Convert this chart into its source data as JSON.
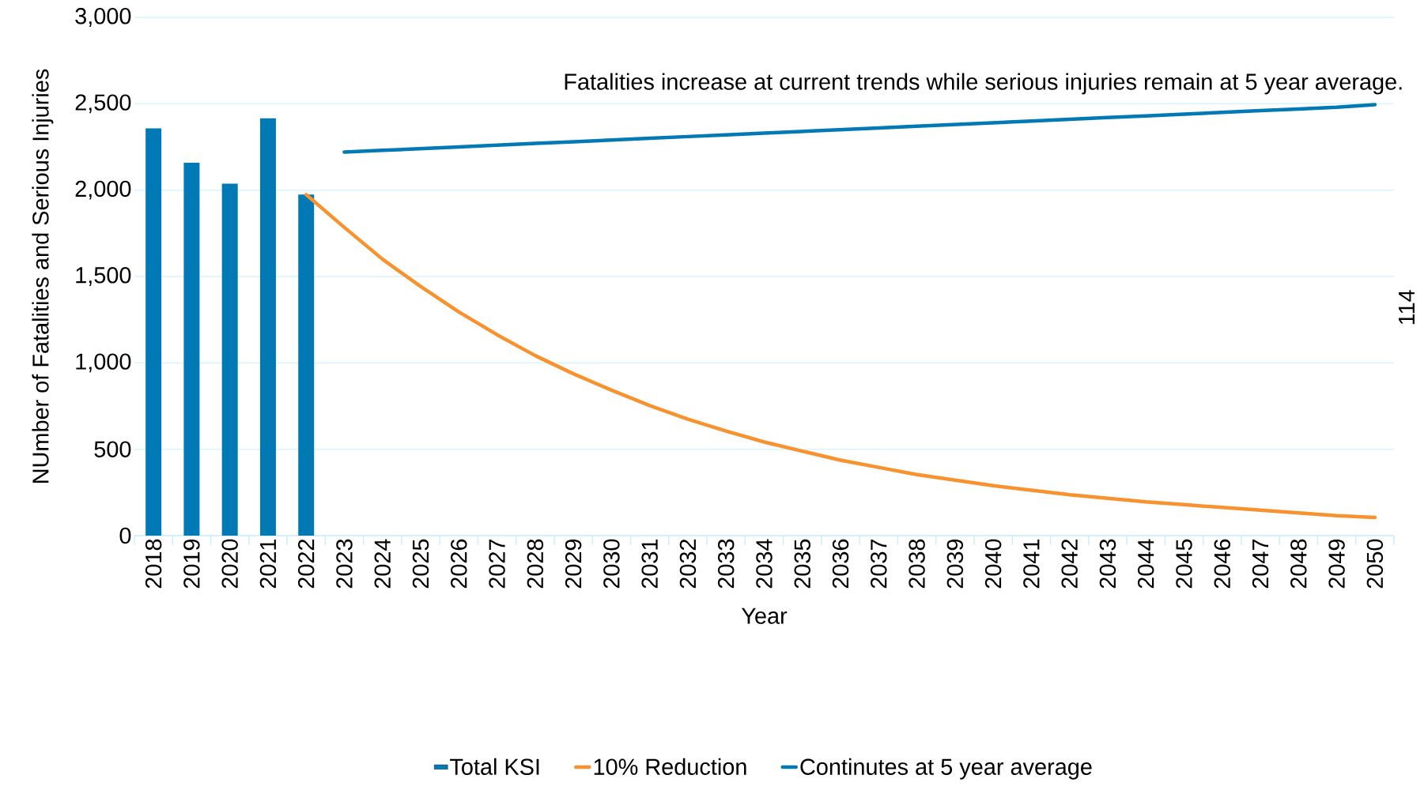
{
  "chart_data": {
    "type": "bar",
    "xlabel": "Year",
    "ylabel": "NUmber of Fatalities and Serious Injuries",
    "categories": [
      "2018",
      "2019",
      "2020",
      "2021",
      "2022",
      "2023",
      "2024",
      "2025",
      "2026",
      "2027",
      "2028",
      "2029",
      "2030",
      "2031",
      "2032",
      "2033",
      "2034",
      "2035",
      "2036",
      "2037",
      "2038",
      "2039",
      "2040",
      "2041",
      "2042",
      "2043",
      "2044",
      "2045",
      "2046",
      "2047",
      "2048",
      "2049",
      "2050"
    ],
    "series": [
      {
        "name": "Total KSI",
        "color": "#0079b4",
        "values": [
          2358,
          2158,
          2037,
          2416,
          1974,
          null,
          null,
          null,
          null,
          null,
          null,
          null,
          null,
          null,
          null,
          null,
          null,
          null,
          null,
          null,
          null,
          null,
          null,
          null,
          null,
          null,
          null,
          null,
          null,
          null,
          null,
          null,
          null
        ]
      },
      {
        "name": "10% Reduction",
        "type": "line",
        "color": "#f7922e",
        "values": [
          null,
          null,
          null,
          null,
          1974,
          1784,
          1600,
          1442,
          1295,
          1163,
          1042,
          937,
          842,
          753,
          674,
          605,
          542,
          489,
          437,
          395,
          353,
          321,
          289,
          263,
          237,
          216,
          195,
          179,
          163,
          147,
          132,
          116,
          105
        ]
      },
      {
        "name": "Continutes at 5 year average",
        "type": "line",
        "color": "#0079b4",
        "values": [
          null,
          null,
          null,
          null,
          null,
          2220,
          2230,
          2240,
          2250,
          2260,
          2270,
          2280,
          2290,
          2300,
          2310,
          2320,
          2330,
          2340,
          2350,
          2360,
          2370,
          2380,
          2390,
          2400,
          2410,
          2420,
          2430,
          2440,
          2450,
          2460,
          2470,
          2480,
          2495
        ]
      }
    ],
    "ylim": [
      0,
      3000
    ],
    "yticks": [
      {
        "value": 0,
        "label": "0"
      },
      {
        "value": 500,
        "label": "500"
      },
      {
        "value": 1000,
        "label": "1,000"
      },
      {
        "value": 1500,
        "label": "1,500"
      },
      {
        "value": 2000,
        "label": "2,000"
      },
      {
        "value": 2500,
        "label": "2,500"
      },
      {
        "value": 3000,
        "label": "3,000"
      }
    ],
    "grid": "y",
    "legend": "bottom",
    "marker": "none",
    "annotations": [
      "Fatalities increase at current trends while serious injuries remain at 5 year average.",
      "114"
    ]
  }
}
